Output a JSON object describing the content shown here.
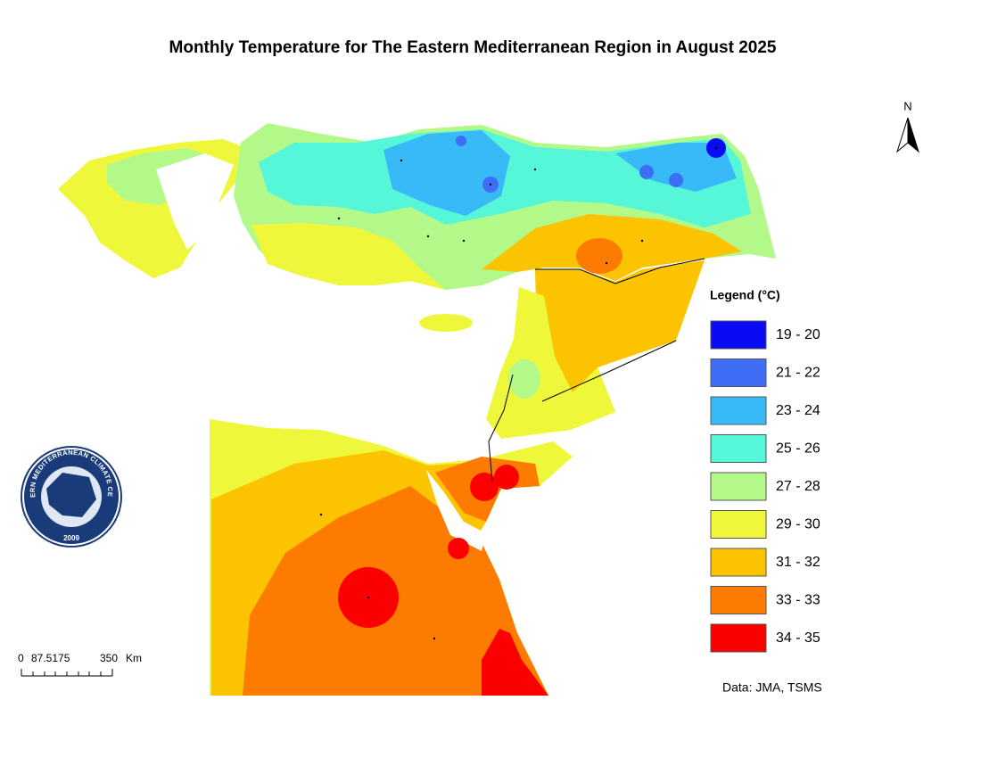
{
  "title": "Monthly Temperature for The Eastern Mediterranean Region in August 2025",
  "legend": {
    "title": "Legend (°C)",
    "items": [
      {
        "label": "19 - 20",
        "color": "#0a0af5"
      },
      {
        "label": "21 - 22",
        "color": "#3d6ef5"
      },
      {
        "label": "23 - 24",
        "color": "#37baf7"
      },
      {
        "label": "25 - 26",
        "color": "#55f7d8"
      },
      {
        "label": "27 - 28",
        "color": "#b2f98a"
      },
      {
        "label": "29 - 30",
        "color": "#eef739"
      },
      {
        "label": "31 - 32",
        "color": "#fcc300"
      },
      {
        "label": "33 - 33",
        "color": "#fc7b00"
      },
      {
        "label": "34 - 35",
        "color": "#fc0000"
      }
    ]
  },
  "north_arrow": "N",
  "scale_bar": {
    "labels": [
      "0",
      "87.5175",
      "350",
      "Km"
    ]
  },
  "credit": "Data: JMA, TSMS",
  "logo": {
    "text": "EASTERN MEDITERRANEAN CLIMATE CENTRE",
    "year": "2009"
  }
}
